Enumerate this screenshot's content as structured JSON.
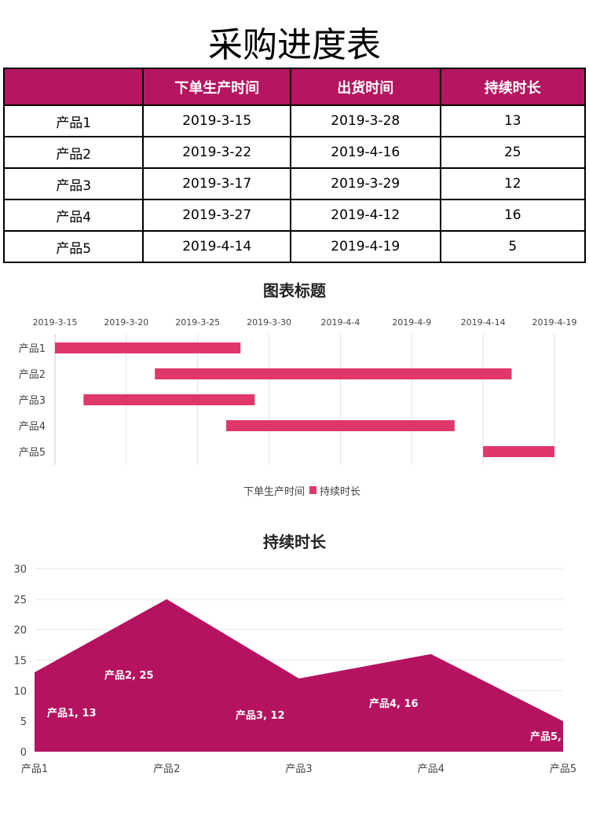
{
  "title": "采购进度表",
  "table": {
    "headers": [
      "",
      "下单生产时间",
      "出货时间",
      "持续时长"
    ],
    "rows": [
      [
        "产品1",
        "2019-3-15",
        "2019-3-28",
        "13"
      ],
      [
        "产品2",
        "2019-3-22",
        "2019-4-16",
        "25"
      ],
      [
        "产品3",
        "2019-3-17",
        "2019-3-29",
        "12"
      ],
      [
        "产品4",
        "2019-3-27",
        "2019-4-12",
        "16"
      ],
      [
        "产品5",
        "2019-4-14",
        "2019-4-19",
        "5"
      ]
    ]
  },
  "chart_data": [
    {
      "type": "bar",
      "orientation": "horizontal-stacked-gantt",
      "title": "图表标题",
      "categories": [
        "产品1",
        "产品2",
        "产品3",
        "产品4",
        "产品5"
      ],
      "x_ticks": [
        "2019-3-15",
        "2019-3-20",
        "2019-3-25",
        "2019-3-30",
        "2019-4-4",
        "2019-4-9",
        "2019-4-14",
        "2019-4-19"
      ],
      "start_offset_days": [
        0,
        7,
        2,
        12,
        30
      ],
      "series": [
        {
          "name": "下单生产时间",
          "values": [
            "2019-3-15",
            "2019-3-22",
            "2019-3-17",
            "2019-3-27",
            "2019-4-14"
          ],
          "color": "none"
        },
        {
          "name": "持续时长",
          "values": [
            13,
            25,
            12,
            16,
            5
          ],
          "color": "#e0376b"
        }
      ],
      "xlim_days": [
        0,
        35
      ],
      "legend": "bottom"
    },
    {
      "type": "area",
      "title": "持续时长",
      "categories": [
        "产品1",
        "产品2",
        "产品3",
        "产品4",
        "产品5"
      ],
      "values": [
        13,
        25,
        12,
        16,
        5
      ],
      "data_labels": [
        "产品1, 13",
        "产品2, 25",
        "产品3, 12",
        "产品4, 16",
        "产品5,"
      ],
      "y_ticks": [
        "0",
        "5",
        "10",
        "15",
        "20",
        "25",
        "30"
      ],
      "ylim": [
        0,
        30
      ],
      "color": "#b5135f",
      "grid": true
    }
  ]
}
